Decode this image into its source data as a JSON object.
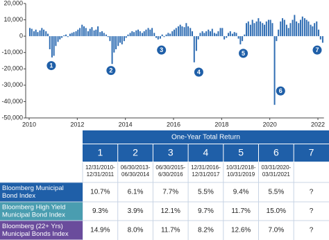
{
  "chart_data": {
    "type": "bar",
    "color": "#2f6db3",
    "x": [
      2010.0,
      2010.08,
      2010.17,
      2010.25,
      2010.33,
      2010.42,
      2010.5,
      2010.58,
      2010.67,
      2010.75,
      2010.83,
      2010.92,
      2011.0,
      2011.08,
      2011.17,
      2011.25,
      2011.33,
      2011.42,
      2011.5,
      2011.58,
      2011.67,
      2011.75,
      2011.83,
      2011.92,
      2012.0,
      2012.08,
      2012.17,
      2012.25,
      2012.33,
      2012.42,
      2012.5,
      2012.58,
      2012.67,
      2012.75,
      2012.83,
      2012.92,
      2013.0,
      2013.08,
      2013.17,
      2013.25,
      2013.33,
      2013.42,
      2013.5,
      2013.58,
      2013.67,
      2013.75,
      2013.83,
      2013.92,
      2014.0,
      2014.08,
      2014.17,
      2014.25,
      2014.33,
      2014.42,
      2014.5,
      2014.58,
      2014.67,
      2014.75,
      2014.83,
      2014.92,
      2015.0,
      2015.08,
      2015.17,
      2015.25,
      2015.33,
      2015.42,
      2015.5,
      2015.58,
      2015.67,
      2015.75,
      2015.83,
      2015.92,
      2016.0,
      2016.08,
      2016.17,
      2016.25,
      2016.33,
      2016.42,
      2016.5,
      2016.58,
      2016.67,
      2016.75,
      2016.83,
      2016.92,
      2017.0,
      2017.08,
      2017.17,
      2017.25,
      2017.33,
      2017.42,
      2017.5,
      2017.58,
      2017.67,
      2017.75,
      2017.83,
      2017.92,
      2018.0,
      2018.08,
      2018.17,
      2018.25,
      2018.33,
      2018.42,
      2018.5,
      2018.58,
      2018.67,
      2018.75,
      2018.83,
      2018.92,
      2019.0,
      2019.08,
      2019.17,
      2019.25,
      2019.33,
      2019.42,
      2019.5,
      2019.58,
      2019.67,
      2019.75,
      2019.83,
      2019.92,
      2020.0,
      2020.08,
      2020.17,
      2020.25,
      2020.33,
      2020.42,
      2020.5,
      2020.58,
      2020.67,
      2020.75,
      2020.83,
      2020.92,
      2021.0,
      2021.08,
      2021.17,
      2021.25,
      2021.33,
      2021.42,
      2021.5,
      2021.58,
      2021.67,
      2021.75,
      2021.83,
      2021.92,
      2022.0,
      2022.08,
      2022.17
    ],
    "values": [
      5000,
      4500,
      3000,
      4000,
      2500,
      3500,
      5000,
      4000,
      3000,
      1500,
      -8000,
      -13000,
      -12000,
      -6000,
      -3500,
      -2000,
      -1000,
      500,
      1000,
      -500,
      1500,
      2000,
      2500,
      3000,
      4000,
      5000,
      7000,
      6000,
      5000,
      3000,
      4500,
      5500,
      3500,
      4000,
      6000,
      2500,
      3000,
      2000,
      1000,
      -500,
      -3000,
      -17000,
      -10000,
      -8000,
      -6000,
      -4000,
      -5000,
      -3000,
      -1000,
      1000,
      2000,
      3000,
      2500,
      3500,
      4000,
      3000,
      2000,
      3000,
      4000,
      5000,
      4000,
      5000,
      2000,
      -1000,
      -2000,
      -1500,
      1000,
      -500,
      1000,
      2000,
      1500,
      3000,
      4000,
      5000,
      6000,
      7000,
      6000,
      5500,
      8000,
      6000,
      5000,
      3000,
      -16000,
      -9000,
      -2000,
      2000,
      3000,
      2000,
      3000,
      4000,
      3000,
      4500,
      2000,
      1500,
      3000,
      5000,
      5000,
      -2000,
      -1000,
      2000,
      3000,
      1500,
      2500,
      2000,
      -1500,
      -5000,
      -3000,
      1000,
      8000,
      9000,
      7000,
      10000,
      8000,
      9000,
      11000,
      9000,
      8000,
      7000,
      9000,
      10000,
      10000,
      8000,
      -42000,
      -3000,
      4000,
      9000,
      11000,
      10000,
      7000,
      5000,
      8000,
      10000,
      13000,
      9000,
      8000,
      10000,
      12000,
      11000,
      10000,
      9000,
      7000,
      6000,
      8000,
      9000,
      4000,
      -2000,
      -4000
    ],
    "xlim": [
      2010,
      2022.25
    ],
    "xticks": [
      2010,
      2012,
      2014,
      2016,
      2018,
      2020,
      2022
    ],
    "ylim": [
      -50000,
      20000
    ],
    "yticks": [
      {
        "value": 20000,
        "label": "20,000"
      },
      {
        "value": 10000,
        "label": "10,000"
      },
      0,
      {
        "value": -10000,
        "label": "-10,000"
      },
      {
        "value": -20000,
        "label": "-20,000"
      },
      {
        "value": -30000,
        "label": "-30,000"
      },
      {
        "value": -40000,
        "label": "-40,000"
      },
      {
        "value": -50000,
        "label": "-50,000"
      }
    ],
    "grid": false,
    "annotations": [
      {
        "label": "1",
        "x": 2010.92,
        "y": -18000
      },
      {
        "label": "2",
        "x": 2013.4,
        "y": -21000
      },
      {
        "label": "3",
        "x": 2015.5,
        "y": -8500
      },
      {
        "label": "4",
        "x": 2017.05,
        "y": -22000
      },
      {
        "label": "5",
        "x": 2018.9,
        "y": -10500
      },
      {
        "label": "6",
        "x": 2020.45,
        "y": -33500
      },
      {
        "label": "7",
        "x": 2021.97,
        "y": -8500
      }
    ]
  },
  "table": {
    "header": "One-Year Total Return",
    "columns": [
      {
        "number": "1",
        "period": [
          "12/31/2010-",
          "12/31/2011"
        ]
      },
      {
        "number": "2",
        "period": [
          "06/30/2013-",
          "06/30/2014"
        ]
      },
      {
        "number": "3",
        "period": [
          "06/30/2015-",
          "6/30/2016"
        ]
      },
      {
        "number": "4",
        "period": [
          "12/31/2016-",
          "12/31/2017"
        ]
      },
      {
        "number": "5",
        "period": [
          "10/31/2018-",
          "10/31/2019"
        ]
      },
      {
        "number": "6",
        "period": [
          "03/31/2020-",
          "03/31/2021"
        ]
      },
      {
        "number": "7"
      }
    ],
    "rows": [
      {
        "label": [
          "Bloomberg Municipal",
          "Bond Index"
        ],
        "color": "#1f5fa8",
        "values": [
          "10.7%",
          "6.1%",
          "7.7%",
          "5.5%",
          "9.4%",
          "5.5%",
          "?"
        ]
      },
      {
        "label": [
          "Bloomberg High Yield",
          "Municipal Bond Index"
        ],
        "color": "#4a9db0",
        "values": [
          "9.3%",
          "3.9%",
          "12.1%",
          "9.7%",
          "11.7%",
          "15.0%",
          "?"
        ]
      },
      {
        "label": [
          "Bloomberg (22+ Yrs)",
          "Municipal Bonds Index"
        ],
        "color": "#6a4c9c",
        "values": [
          "14.9%",
          "8.0%",
          "11.7%",
          "8.2%",
          "12.6%",
          "7.0%",
          "?"
        ]
      }
    ]
  }
}
